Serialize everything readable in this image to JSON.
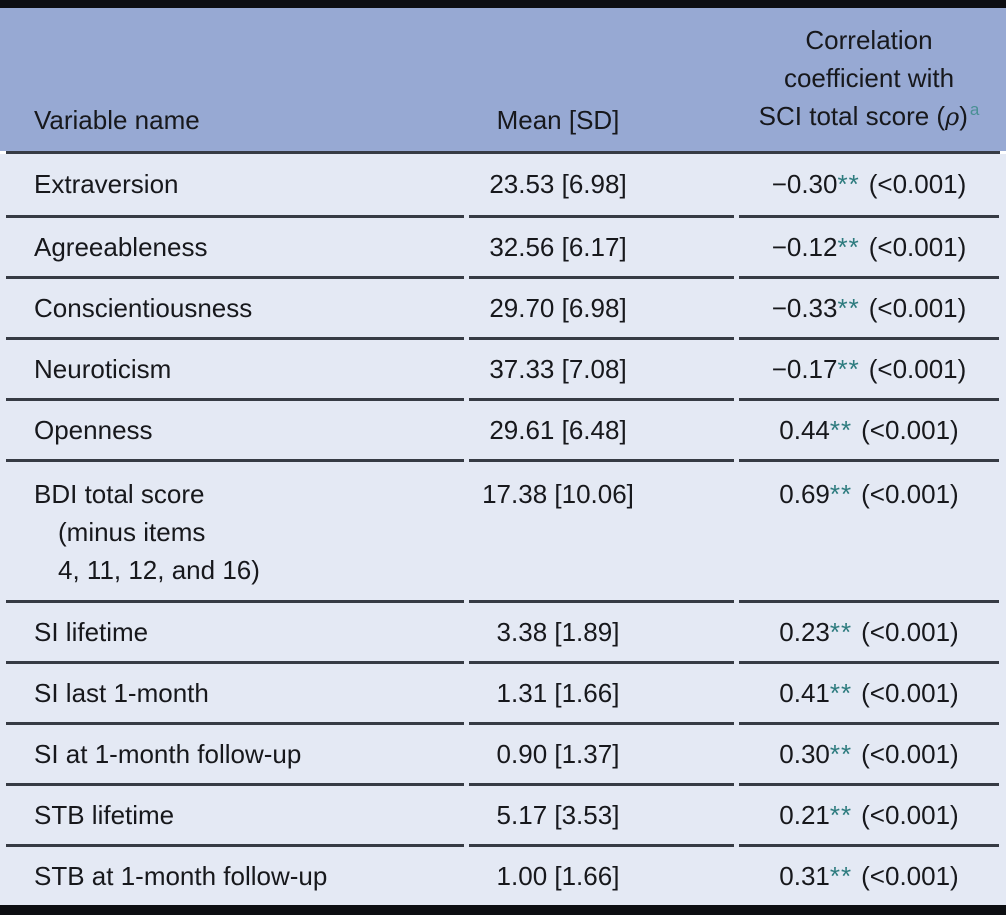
{
  "colors": {
    "header_bg": "#97a9d3",
    "row_bg": "#e4e9f4",
    "rule": "#363b44",
    "bar": "#0d0e12",
    "text": "#17181c",
    "teal": "#2d7b7e",
    "teal_light": "#4a9094"
  },
  "table": {
    "header": {
      "col1": "Variable name",
      "col2": "Mean [SD]",
      "col3_line1": "Correlation",
      "col3_line2": "coefficient with",
      "col3_line3_prefix": "SCI total score (",
      "col3_rho": "ρ",
      "col3_line3_suffix": ")",
      "col3_footnote_marker": "a"
    },
    "rows": [
      {
        "name": "Extraversion",
        "mean_sd": "23.53 [6.98]",
        "coefficient": "−0.30",
        "stars": "**",
        "p_value": "(<0.001)"
      },
      {
        "name": "Agreeableness",
        "mean_sd": "32.56 [6.17]",
        "coefficient": "−0.12",
        "stars": "**",
        "p_value": "(<0.001)"
      },
      {
        "name": "Conscientiousness",
        "mean_sd": "29.70 [6.98]",
        "coefficient": "−0.33",
        "stars": "**",
        "p_value": "(<0.001)"
      },
      {
        "name": "Neuroticism",
        "mean_sd": "37.33 [7.08]",
        "coefficient": "−0.17",
        "stars": "**",
        "p_value": "(<0.001)"
      },
      {
        "name": "Openness",
        "mean_sd": "29.61 [6.48]",
        "coefficient": "0.44",
        "stars": "**",
        "p_value": "(<0.001)"
      },
      {
        "name": "BDI total score",
        "name_line2": "(minus items",
        "name_line3": "4, 11, 12, and 16)",
        "mean_sd": "17.38 [10.06]",
        "coefficient": "0.69",
        "stars": "**",
        "p_value": "(<0.001)"
      },
      {
        "name": "SI lifetime",
        "mean_sd": "3.38 [1.89]",
        "coefficient": "0.23",
        "stars": "**",
        "p_value": "(<0.001)"
      },
      {
        "name": "SI last 1-month",
        "mean_sd": "1.31 [1.66]",
        "coefficient": "0.41",
        "stars": "**",
        "p_value": "(<0.001)"
      },
      {
        "name": "SI at 1-month follow-up",
        "mean_sd": "0.90 [1.37]",
        "coefficient": "0.30",
        "stars": "**",
        "p_value": "(<0.001)"
      },
      {
        "name": "STB lifetime",
        "mean_sd": "5.17 [3.53]",
        "coefficient": "0.21",
        "stars": "**",
        "p_value": "(<0.001)"
      },
      {
        "name": "STB at 1-month follow-up",
        "mean_sd": "1.00 [1.66]",
        "coefficient": "0.31",
        "stars": "**",
        "p_value": "(<0.001)"
      }
    ]
  }
}
